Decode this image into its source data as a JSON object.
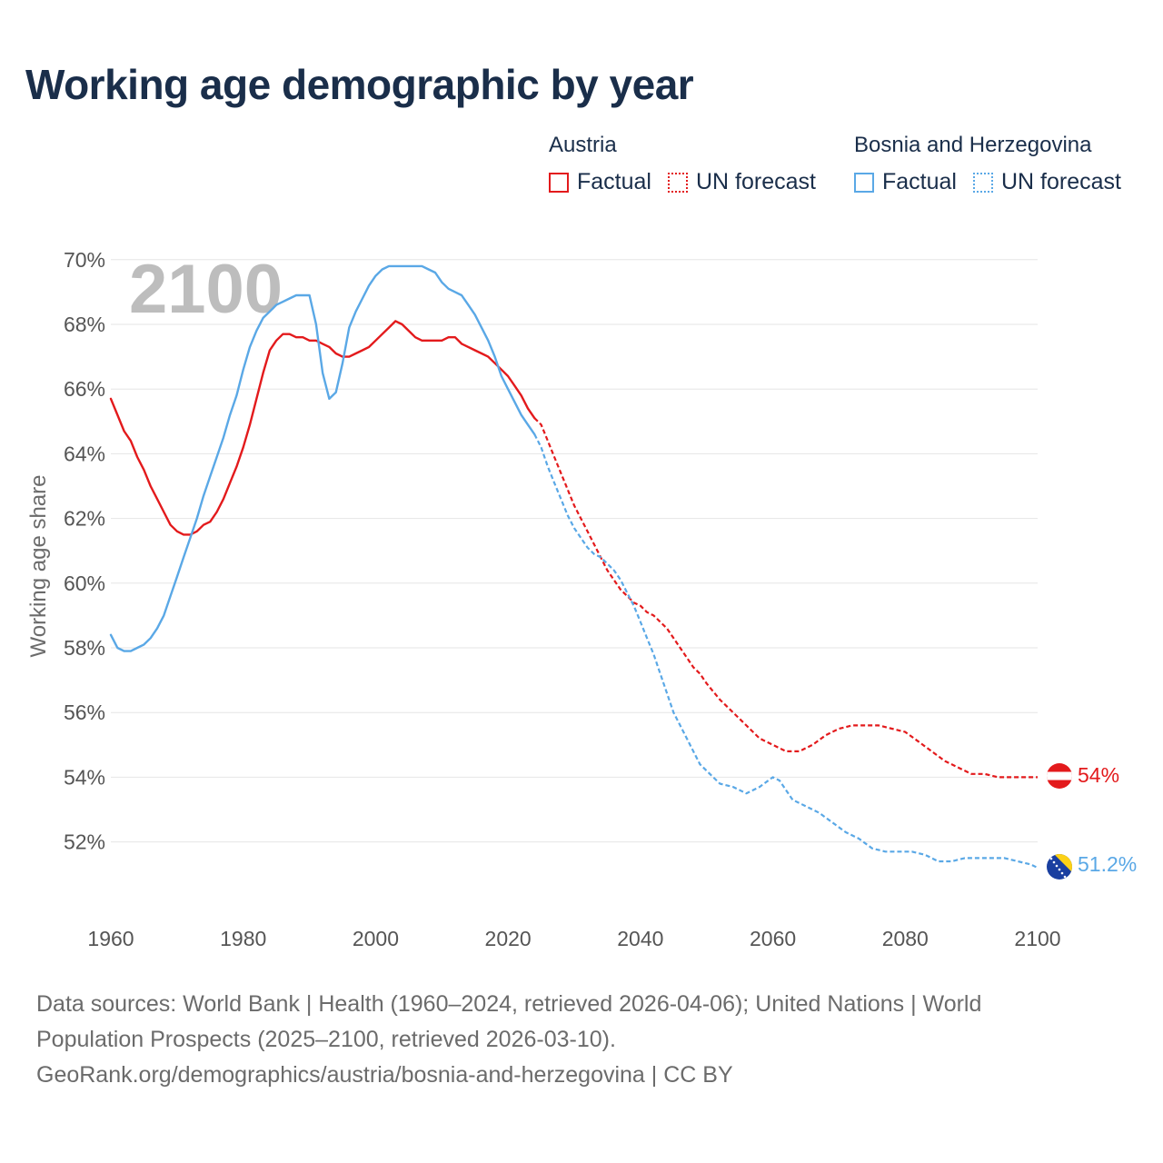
{
  "title": "Working age demographic by year",
  "legend": {
    "groups": [
      {
        "name": "Austria",
        "factual_label": "Factual",
        "forecast_label": "UN forecast",
        "color": "#e31a1c"
      },
      {
        "name": "Bosnia and Herzegovina",
        "factual_label": "Factual",
        "forecast_label": "UN forecast",
        "color": "#5aa8e6"
      }
    ]
  },
  "chart_data": {
    "type": "line",
    "ylabel": "Working age share",
    "xlabel": "",
    "watermark_year": "2100",
    "xlim": [
      1960,
      2100
    ],
    "ylim": [
      50.5,
      70.5
    ],
    "x_ticks": [
      1960,
      1980,
      2000,
      2020,
      2040,
      2060,
      2080,
      2100
    ],
    "y_ticks": [
      52,
      54,
      56,
      58,
      60,
      62,
      64,
      66,
      68,
      70
    ],
    "y_tick_labels": [
      "52%",
      "54%",
      "56%",
      "58%",
      "60%",
      "62%",
      "64%",
      "66%",
      "68%",
      "70%"
    ],
    "grid": true,
    "forecast_start": 2025,
    "series": [
      {
        "name": "Austria",
        "color": "#e31a1c",
        "end_label": "54%",
        "points": [
          [
            1960,
            65.7
          ],
          [
            1962,
            64.7
          ],
          [
            1963,
            64.4
          ],
          [
            1964,
            63.9
          ],
          [
            1965,
            63.5
          ],
          [
            1966,
            63.0
          ],
          [
            1967,
            62.6
          ],
          [
            1968,
            62.2
          ],
          [
            1969,
            61.8
          ],
          [
            1970,
            61.6
          ],
          [
            1971,
            61.5
          ],
          [
            1972,
            61.5
          ],
          [
            1973,
            61.6
          ],
          [
            1974,
            61.8
          ],
          [
            1975,
            61.9
          ],
          [
            1976,
            62.2
          ],
          [
            1977,
            62.6
          ],
          [
            1978,
            63.1
          ],
          [
            1979,
            63.6
          ],
          [
            1980,
            64.2
          ],
          [
            1981,
            64.9
          ],
          [
            1982,
            65.7
          ],
          [
            1983,
            66.5
          ],
          [
            1984,
            67.2
          ],
          [
            1985,
            67.5
          ],
          [
            1986,
            67.7
          ],
          [
            1987,
            67.7
          ],
          [
            1988,
            67.6
          ],
          [
            1989,
            67.6
          ],
          [
            1990,
            67.5
          ],
          [
            1991,
            67.5
          ],
          [
            1992,
            67.4
          ],
          [
            1993,
            67.3
          ],
          [
            1994,
            67.1
          ],
          [
            1995,
            67.0
          ],
          [
            1996,
            67.0
          ],
          [
            1997,
            67.1
          ],
          [
            1998,
            67.2
          ],
          [
            1999,
            67.3
          ],
          [
            2000,
            67.5
          ],
          [
            2001,
            67.7
          ],
          [
            2002,
            67.9
          ],
          [
            2003,
            68.1
          ],
          [
            2004,
            68.0
          ],
          [
            2005,
            67.8
          ],
          [
            2006,
            67.6
          ],
          [
            2007,
            67.5
          ],
          [
            2008,
            67.5
          ],
          [
            2009,
            67.5
          ],
          [
            2010,
            67.5
          ],
          [
            2011,
            67.6
          ],
          [
            2012,
            67.6
          ],
          [
            2013,
            67.4
          ],
          [
            2014,
            67.3
          ],
          [
            2015,
            67.2
          ],
          [
            2016,
            67.1
          ],
          [
            2017,
            67.0
          ],
          [
            2018,
            66.8
          ],
          [
            2019,
            66.6
          ],
          [
            2020,
            66.4
          ],
          [
            2021,
            66.1
          ],
          [
            2022,
            65.8
          ],
          [
            2023,
            65.4
          ],
          [
            2024,
            65.1
          ],
          [
            2025,
            64.9
          ],
          [
            2026,
            64.4
          ],
          [
            2027,
            63.9
          ],
          [
            2028,
            63.4
          ],
          [
            2029,
            62.9
          ],
          [
            2030,
            62.4
          ],
          [
            2031,
            62.0
          ],
          [
            2032,
            61.6
          ],
          [
            2033,
            61.2
          ],
          [
            2034,
            60.8
          ],
          [
            2035,
            60.4
          ],
          [
            2036,
            60.1
          ],
          [
            2037,
            59.8
          ],
          [
            2038,
            59.6
          ],
          [
            2039,
            59.4
          ],
          [
            2040,
            59.3
          ],
          [
            2041,
            59.1
          ],
          [
            2042,
            59.0
          ],
          [
            2043,
            58.8
          ],
          [
            2044,
            58.6
          ],
          [
            2045,
            58.3
          ],
          [
            2046,
            58.0
          ],
          [
            2047,
            57.7
          ],
          [
            2048,
            57.4
          ],
          [
            2049,
            57.2
          ],
          [
            2050,
            56.9
          ],
          [
            2052,
            56.4
          ],
          [
            2054,
            56.0
          ],
          [
            2056,
            55.6
          ],
          [
            2058,
            55.2
          ],
          [
            2060,
            55.0
          ],
          [
            2062,
            54.8
          ],
          [
            2064,
            54.8
          ],
          [
            2066,
            55.0
          ],
          [
            2068,
            55.3
          ],
          [
            2070,
            55.5
          ],
          [
            2072,
            55.6
          ],
          [
            2074,
            55.6
          ],
          [
            2076,
            55.6
          ],
          [
            2078,
            55.5
          ],
          [
            2080,
            55.4
          ],
          [
            2082,
            55.1
          ],
          [
            2084,
            54.8
          ],
          [
            2086,
            54.5
          ],
          [
            2088,
            54.3
          ],
          [
            2090,
            54.1
          ],
          [
            2092,
            54.1
          ],
          [
            2094,
            54.0
          ],
          [
            2096,
            54.0
          ],
          [
            2098,
            54.0
          ],
          [
            2100,
            54.0
          ]
        ]
      },
      {
        "name": "Bosnia and Herzegovina",
        "color": "#5aa8e6",
        "end_label": "51.2%",
        "points": [
          [
            1960,
            58.4
          ],
          [
            1961,
            58.0
          ],
          [
            1962,
            57.9
          ],
          [
            1963,
            57.9
          ],
          [
            1964,
            58.0
          ],
          [
            1965,
            58.1
          ],
          [
            1966,
            58.3
          ],
          [
            1967,
            58.6
          ],
          [
            1968,
            59.0
          ],
          [
            1969,
            59.6
          ],
          [
            1970,
            60.2
          ],
          [
            1971,
            60.8
          ],
          [
            1972,
            61.4
          ],
          [
            1973,
            62.0
          ],
          [
            1974,
            62.7
          ],
          [
            1975,
            63.3
          ],
          [
            1976,
            63.9
          ],
          [
            1977,
            64.5
          ],
          [
            1978,
            65.2
          ],
          [
            1979,
            65.8
          ],
          [
            1980,
            66.6
          ],
          [
            1981,
            67.3
          ],
          [
            1982,
            67.8
          ],
          [
            1983,
            68.2
          ],
          [
            1984,
            68.4
          ],
          [
            1985,
            68.6
          ],
          [
            1986,
            68.7
          ],
          [
            1987,
            68.8
          ],
          [
            1988,
            68.9
          ],
          [
            1989,
            68.9
          ],
          [
            1990,
            68.9
          ],
          [
            1991,
            68.0
          ],
          [
            1992,
            66.5
          ],
          [
            1993,
            65.7
          ],
          [
            1994,
            65.9
          ],
          [
            1995,
            66.8
          ],
          [
            1996,
            67.9
          ],
          [
            1997,
            68.4
          ],
          [
            1998,
            68.8
          ],
          [
            1999,
            69.2
          ],
          [
            2000,
            69.5
          ],
          [
            2001,
            69.7
          ],
          [
            2002,
            69.8
          ],
          [
            2003,
            69.8
          ],
          [
            2004,
            69.8
          ],
          [
            2005,
            69.8
          ],
          [
            2006,
            69.8
          ],
          [
            2007,
            69.8
          ],
          [
            2008,
            69.7
          ],
          [
            2009,
            69.6
          ],
          [
            2010,
            69.3
          ],
          [
            2011,
            69.1
          ],
          [
            2012,
            69.0
          ],
          [
            2013,
            68.9
          ],
          [
            2014,
            68.6
          ],
          [
            2015,
            68.3
          ],
          [
            2016,
            67.9
          ],
          [
            2017,
            67.5
          ],
          [
            2018,
            67.0
          ],
          [
            2019,
            66.4
          ],
          [
            2020,
            66.0
          ],
          [
            2021,
            65.6
          ],
          [
            2022,
            65.2
          ],
          [
            2023,
            64.9
          ],
          [
            2024,
            64.6
          ],
          [
            2025,
            64.2
          ],
          [
            2026,
            63.6
          ],
          [
            2027,
            63.1
          ],
          [
            2028,
            62.6
          ],
          [
            2029,
            62.1
          ],
          [
            2030,
            61.7
          ],
          [
            2031,
            61.4
          ],
          [
            2032,
            61.1
          ],
          [
            2033,
            60.9
          ],
          [
            2034,
            60.8
          ],
          [
            2035,
            60.6
          ],
          [
            2036,
            60.4
          ],
          [
            2037,
            60.1
          ],
          [
            2038,
            59.7
          ],
          [
            2039,
            59.3
          ],
          [
            2040,
            58.8
          ],
          [
            2041,
            58.3
          ],
          [
            2042,
            57.8
          ],
          [
            2043,
            57.2
          ],
          [
            2044,
            56.6
          ],
          [
            2045,
            56.0
          ],
          [
            2046,
            55.6
          ],
          [
            2047,
            55.2
          ],
          [
            2048,
            54.8
          ],
          [
            2049,
            54.4
          ],
          [
            2050,
            54.2
          ],
          [
            2052,
            53.8
          ],
          [
            2054,
            53.7
          ],
          [
            2056,
            53.5
          ],
          [
            2058,
            53.7
          ],
          [
            2060,
            54.0
          ],
          [
            2061,
            53.9
          ],
          [
            2062,
            53.6
          ],
          [
            2063,
            53.3
          ],
          [
            2065,
            53.1
          ],
          [
            2067,
            52.9
          ],
          [
            2069,
            52.6
          ],
          [
            2071,
            52.3
          ],
          [
            2073,
            52.1
          ],
          [
            2075,
            51.8
          ],
          [
            2077,
            51.7
          ],
          [
            2079,
            51.7
          ],
          [
            2081,
            51.7
          ],
          [
            2083,
            51.6
          ],
          [
            2085,
            51.4
          ],
          [
            2087,
            51.4
          ],
          [
            2089,
            51.5
          ],
          [
            2091,
            51.5
          ],
          [
            2093,
            51.5
          ],
          [
            2095,
            51.5
          ],
          [
            2097,
            51.4
          ],
          [
            2099,
            51.3
          ],
          [
            2100,
            51.2
          ]
        ]
      }
    ]
  },
  "footer": {
    "line1": "Data sources: World Bank | Health (1960–2024, retrieved 2026-04-06); United Nations | World",
    "line2": "Population Prospects (2025–2100, retrieved 2026-03-10).",
    "line3": "GeoRank.org/demographics/austria/bosnia-and-herzegovina | CC BY"
  }
}
